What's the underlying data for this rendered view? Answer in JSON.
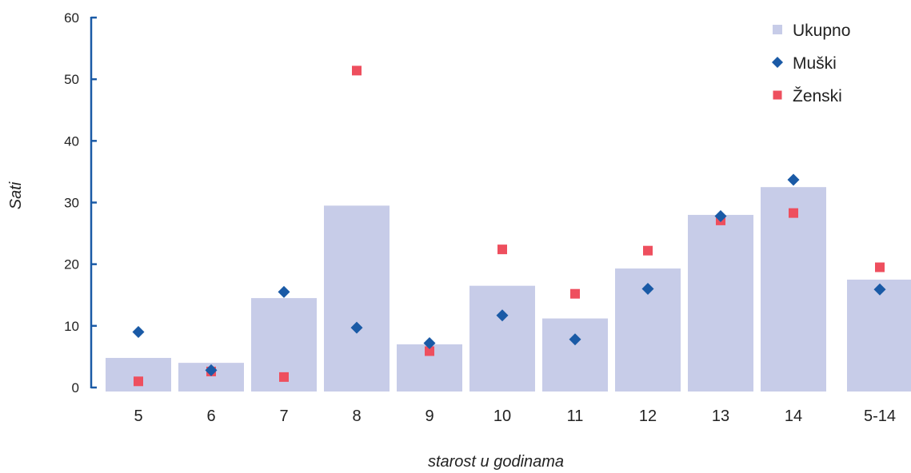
{
  "chart_data": {
    "type": "bar",
    "title": "",
    "xlabel": "starost u godinama",
    "ylabel": "Sati",
    "ylim": [
      0,
      60
    ],
    "yticks": [
      0,
      10,
      20,
      30,
      40,
      50,
      60
    ],
    "grid": false,
    "legend_position": "top-right",
    "categories": [
      "5",
      "6",
      "7",
      "8",
      "9",
      "10",
      "11",
      "12",
      "13",
      "14",
      "5-14"
    ],
    "series": [
      {
        "name": "Ukupno",
        "kind": "bar",
        "marker": "rect",
        "color": "#c7cce8",
        "values": [
          4.8,
          4,
          14.5,
          29.5,
          7,
          16.5,
          11.2,
          19.3,
          28,
          32.5,
          17.5
        ]
      },
      {
        "name": "Muški",
        "kind": "scatter",
        "marker": "diamond",
        "color": "#1a5aa6",
        "values": [
          9,
          2.8,
          15.5,
          9.7,
          7.2,
          11.7,
          7.8,
          16,
          27.8,
          33.7,
          15.9
        ]
      },
      {
        "name": "Ženski",
        "kind": "scatter",
        "marker": "square",
        "color": "#ee4f5e",
        "values": [
          1,
          2.6,
          1.7,
          51.4,
          5.9,
          22.4,
          15.2,
          22.2,
          27.1,
          28.3,
          19.5
        ]
      }
    ],
    "axis_color": "#1a5aa6"
  }
}
